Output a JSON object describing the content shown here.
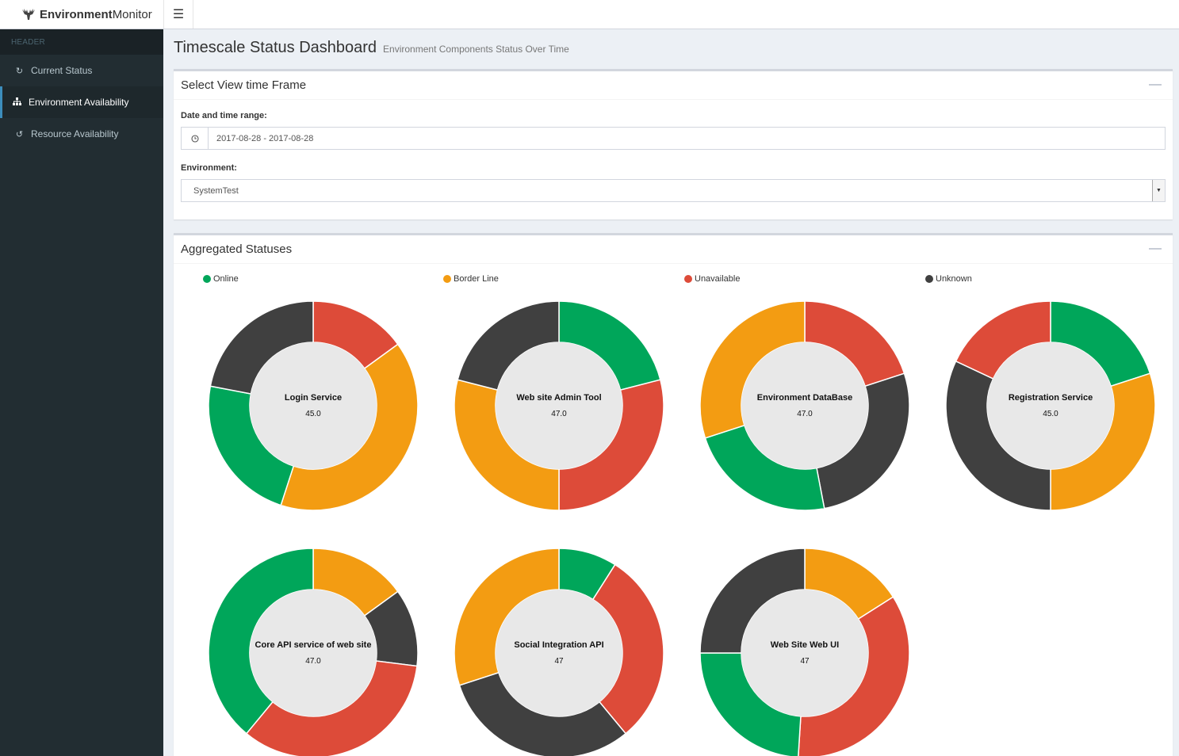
{
  "brand": {
    "bold": "Environment",
    "rest": "Monitor"
  },
  "sidebar": {
    "header": "HEADER",
    "items": [
      {
        "label": "Current Status",
        "icon": "refresh-icon"
      },
      {
        "label": "Environment Availability",
        "icon": "sitemap-icon"
      },
      {
        "label": "Resource Availability",
        "icon": "history-icon"
      }
    ]
  },
  "page": {
    "title": "Timescale Status Dashboard",
    "subtitle": "Environment Components Status Over Time"
  },
  "timeframe": {
    "title": "Select View time Frame",
    "date_label": "Date and time range:",
    "date_value": "2017-08-28 - 2017-08-28",
    "env_label": "Environment:",
    "env_value": "SystemTest"
  },
  "aggregated": {
    "title": "Aggregated Statuses",
    "legend": [
      {
        "label": "Online",
        "color": "#00a65a"
      },
      {
        "label": "Border Line",
        "color": "#f39c12"
      },
      {
        "label": "Unavailable",
        "color": "#dd4b39"
      },
      {
        "label": "Unknown",
        "color": "#404040"
      }
    ]
  },
  "chart_data": {
    "type": "pie",
    "categories": [
      "Online",
      "Border Line",
      "Unavailable",
      "Unknown"
    ],
    "colors": [
      "#00a65a",
      "#f39c12",
      "#dd4b39",
      "#404040"
    ],
    "charts": [
      {
        "name": "Login Service",
        "value": "45.0",
        "segments": [
          {
            "status": "Unavailable",
            "share": 0.15
          },
          {
            "status": "Border Line",
            "share": 0.4
          },
          {
            "status": "Online",
            "share": 0.23
          },
          {
            "status": "Unknown",
            "share": 0.22
          }
        ]
      },
      {
        "name": "Web site Admin Tool",
        "value": "47.0",
        "segments": [
          {
            "status": "Online",
            "share": 0.21
          },
          {
            "status": "Unavailable",
            "share": 0.29
          },
          {
            "status": "Border Line",
            "share": 0.29
          },
          {
            "status": "Unknown",
            "share": 0.21
          }
        ]
      },
      {
        "name": "Environment DataBase",
        "value": "47.0",
        "segments": [
          {
            "status": "Unavailable",
            "share": 0.2
          },
          {
            "status": "Unknown",
            "share": 0.27
          },
          {
            "status": "Online",
            "share": 0.23
          },
          {
            "status": "Border Line",
            "share": 0.3
          }
        ]
      },
      {
        "name": "Registration Service",
        "value": "45.0",
        "segments": [
          {
            "status": "Online",
            "share": 0.2
          },
          {
            "status": "Border Line",
            "share": 0.3
          },
          {
            "status": "Unknown",
            "share": 0.32
          },
          {
            "status": "Unavailable",
            "share": 0.18
          }
        ]
      },
      {
        "name": "Core API service of web site",
        "value": "47.0",
        "segments": [
          {
            "status": "Border Line",
            "share": 0.15
          },
          {
            "status": "Unknown",
            "share": 0.12
          },
          {
            "status": "Unavailable",
            "share": 0.34
          },
          {
            "status": "Online",
            "share": 0.39
          }
        ]
      },
      {
        "name": "Social Integration API",
        "value": "47",
        "segments": [
          {
            "status": "Online",
            "share": 0.09
          },
          {
            "status": "Unavailable",
            "share": 0.3
          },
          {
            "status": "Unknown",
            "share": 0.31
          },
          {
            "status": "Border Line",
            "share": 0.3
          }
        ]
      },
      {
        "name": "Web Site Web UI",
        "value": "47",
        "segments": [
          {
            "status": "Border Line",
            "share": 0.16
          },
          {
            "status": "Unavailable",
            "share": 0.35
          },
          {
            "status": "Online",
            "share": 0.24
          },
          {
            "status": "Unknown",
            "share": 0.25
          }
        ]
      }
    ]
  }
}
